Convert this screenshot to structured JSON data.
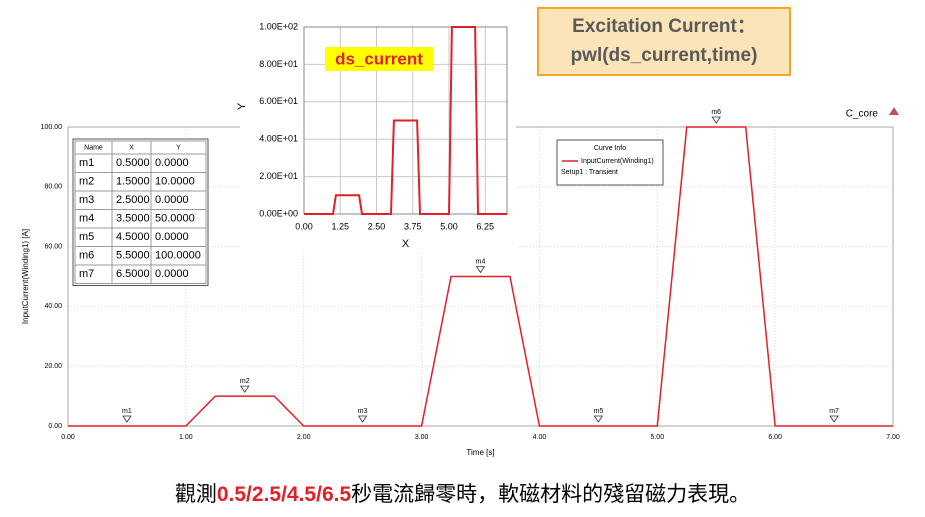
{
  "slide": {
    "callout": [
      "Excitation Current：",
      "pwl(ds_current,time)"
    ],
    "caption": [
      "觀測",
      "0.5/2.5/4.5/6.5",
      "秒電流歸零時，軟磁材料的殘留磁力表現。"
    ]
  },
  "chart_data": [
    {
      "type": "line",
      "title": "C_core",
      "x_label": "Time [s]",
      "y_label": "InputCurrent(Winding1) [A]",
      "legend": {
        "title": "Curve Info",
        "note": "Setup1 : Transient"
      },
      "x": [
        0,
        1,
        1.25,
        1.75,
        2,
        3,
        3.25,
        3.75,
        4,
        5,
        5.25,
        5.75,
        6,
        7
      ],
      "series": [
        {
          "name": "InputCurrent(Winding1)",
          "color": "#e0202a",
          "values": [
            0,
            0,
            10,
            10,
            0,
            0,
            50,
            50,
            0,
            0,
            100,
            100,
            0,
            0
          ]
        }
      ],
      "xlim": [
        0,
        7
      ],
      "xticks": [
        {
          "value": 0,
          "label": "0.00"
        },
        {
          "value": 1,
          "label": "1.00"
        },
        {
          "value": 2,
          "label": "2.00"
        },
        {
          "value": 3,
          "label": "3.00"
        },
        {
          "value": 4,
          "label": "4.00"
        },
        {
          "value": 5,
          "label": "5.00"
        },
        {
          "value": 6,
          "label": "6.00"
        },
        {
          "value": 7,
          "label": "7.00"
        }
      ],
      "ylim": [
        0,
        100
      ],
      "yticks": [
        {
          "value": 0,
          "label": "0.00"
        },
        {
          "value": 20,
          "label": "20.00"
        },
        {
          "value": 40,
          "label": "40.00"
        },
        {
          "value": 60,
          "label": "60.00"
        },
        {
          "value": 80,
          "label": "80.00"
        },
        {
          "value": 100,
          "label": "100.00"
        }
      ],
      "grid": true,
      "markers": [
        {
          "name": "m1",
          "x": 0.5,
          "y": 0
        },
        {
          "name": "m2",
          "x": 1.5,
          "y": 10
        },
        {
          "name": "m3",
          "x": 2.5,
          "y": 0
        },
        {
          "name": "m4",
          "x": 3.5,
          "y": 50
        },
        {
          "name": "m5",
          "x": 4.5,
          "y": 0
        },
        {
          "name": "m6",
          "x": 5.5,
          "y": 100
        },
        {
          "name": "m7",
          "x": 6.5,
          "y": 0
        }
      ]
    },
    {
      "type": "line",
      "title": "ds_current",
      "x_label": "X",
      "y_label": "Y",
      "x": [
        0,
        1,
        1.1,
        1.9,
        2,
        3,
        3.1,
        3.9,
        4,
        5,
        5.1,
        5.9,
        6,
        7
      ],
      "series": [
        {
          "color": "#e0202a",
          "values": [
            0,
            0,
            10,
            10,
            0,
            0,
            50,
            50,
            0,
            0,
            100,
            100,
            0,
            0
          ]
        }
      ],
      "xlim": [
        0,
        7
      ],
      "xticks": [
        {
          "value": 0,
          "label": "0.00"
        },
        {
          "value": 1.25,
          "label": "1.25"
        },
        {
          "value": 2.5,
          "label": "2.50"
        },
        {
          "value": 3.75,
          "label": "3.75"
        },
        {
          "value": 5,
          "label": "5.00"
        },
        {
          "value": 6.25,
          "label": "6.25"
        }
      ],
      "ylim": [
        0,
        100
      ],
      "yticks": [
        {
          "value": 0,
          "label": "0.00E+00"
        },
        {
          "value": 20,
          "label": "2.00E+01"
        },
        {
          "value": 40,
          "label": "4.00E+01"
        },
        {
          "value": 60,
          "label": "6.00E+01"
        },
        {
          "value": 80,
          "label": "8.00E+01"
        },
        {
          "value": 100,
          "label": "1.00E+02"
        }
      ],
      "grid": true
    }
  ],
  "marker_table": {
    "header": [
      "Name",
      "X",
      "Y"
    ],
    "rows": [
      [
        "m1",
        "0.5000",
        "0.0000"
      ],
      [
        "m2",
        "1.5000",
        "10.0000"
      ],
      [
        "m3",
        "2.5000",
        "0.0000"
      ],
      [
        "m4",
        "3.5000",
        "50.0000"
      ],
      [
        "m5",
        "4.5000",
        "0.0000"
      ],
      [
        "m6",
        "5.5000",
        "100.0000"
      ],
      [
        "m7",
        "6.5000",
        "0.0000"
      ]
    ]
  }
}
